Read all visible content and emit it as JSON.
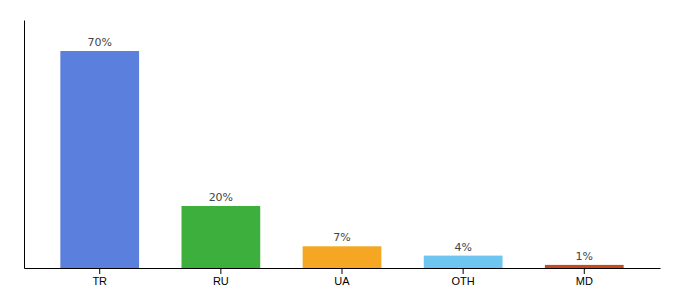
{
  "chart_data": {
    "type": "bar",
    "categories": [
      "TR",
      "RU",
      "UA",
      "OTH",
      "MD"
    ],
    "values": [
      70,
      20,
      7,
      4,
      1
    ],
    "value_labels": [
      "70%",
      "20%",
      "7%",
      "4%",
      "1%"
    ],
    "colors": [
      "#5b7fdd",
      "#3daf3d",
      "#f5a623",
      "#6ec6f0",
      "#c94a1a"
    ],
    "data_labels": true,
    "ylim": [
      0,
      80
    ],
    "tick_labels": "x"
  }
}
